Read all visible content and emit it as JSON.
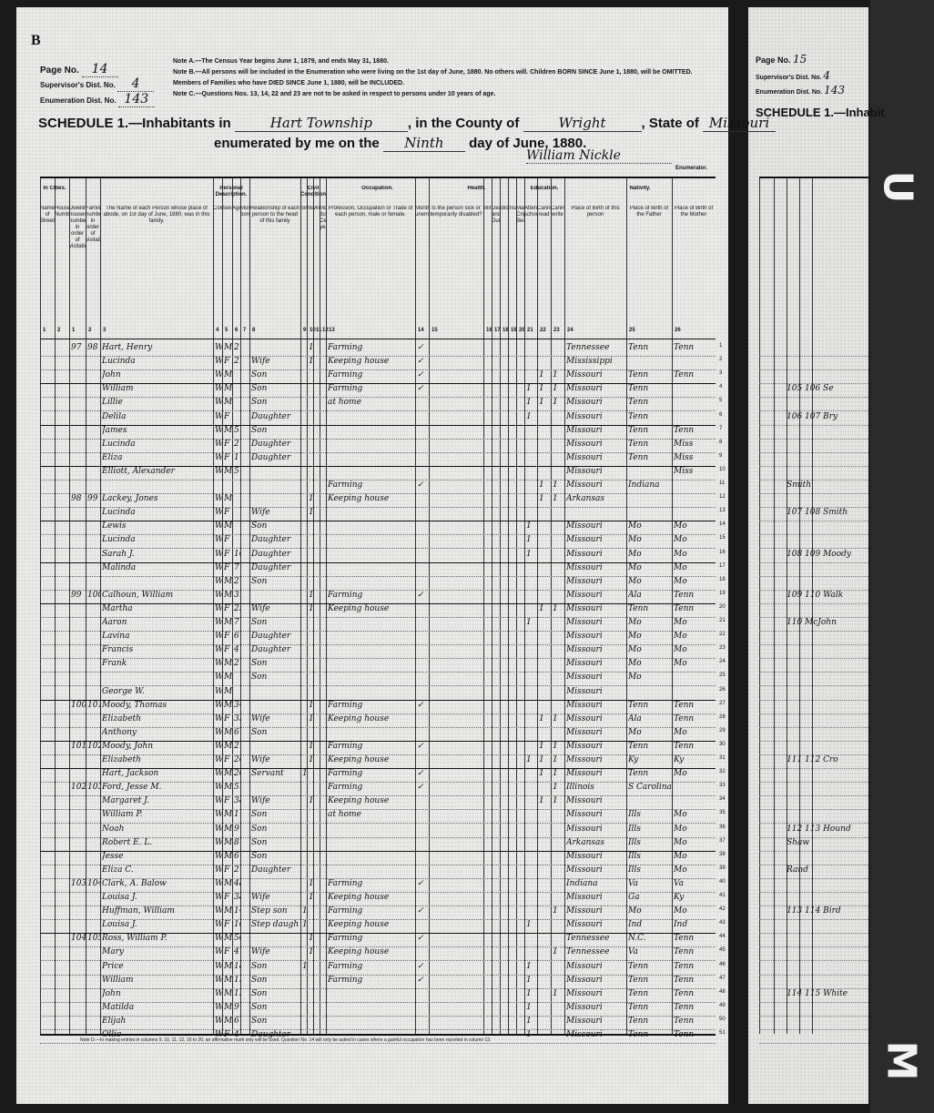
{
  "page_letter": "B",
  "header": {
    "page_no_label": "Page No.",
    "page_no": "14",
    "supervisor_label": "Supervisor's Dist. No.",
    "supervisor_no": "4",
    "enumeration_label": "Enumeration Dist. No.",
    "enumeration_no": "143",
    "notes": [
      "Note A.—The Census Year begins June 1, 1879, and ends May 31, 1880.",
      "Note B.—All persons will be included in the Enumeration who were living on the 1st day of June, 1880. No others will. Children BORN SINCE June 1, 1880, will be OMITTED. Members of Families who have DIED SINCE June 1, 1880, will be INCLUDED.",
      "Note C.—Questions Nos. 13, 14, 22 and 23 are not to be asked in respect to persons under 10 years of age."
    ],
    "schedule_label": "SCHEDULE 1.—Inhabitants in",
    "township": "Hart Township",
    "county_label": ", in the County of",
    "county": "Wright",
    "state_label": ", State of",
    "state": "Missouri",
    "enumerated_label": "enumerated by me on the",
    "day": "Ninth",
    "day_suffix": "day of June, 1880.",
    "enumerator": "William Nickle",
    "enumerator_label": "Enumerator."
  },
  "columns": [
    {
      "label": "Name of Street.",
      "num": "1"
    },
    {
      "label": "House Number.",
      "num": "2"
    },
    {
      "label": "Dwelling houses numbered in order of visitation.",
      "num": "1"
    },
    {
      "label": "Families numbered in order of visitation.",
      "num": "2"
    },
    {
      "label": "The Name of each Person whose place of abode, on 1st day of June, 1880, was in this family.",
      "num": "3"
    },
    {
      "label": "Color",
      "num": "4"
    },
    {
      "label": "Sex",
      "num": "5"
    },
    {
      "label": "Age",
      "num": "6"
    },
    {
      "label": "Month born",
      "num": "7"
    },
    {
      "label": "Relationship of each person to the head of this family",
      "num": "8"
    },
    {
      "label": "Single",
      "num": "9"
    },
    {
      "label": "Married",
      "num": "10"
    },
    {
      "label": "Widowed",
      "num": "11"
    },
    {
      "label": "Married during Census year",
      "num": "12"
    },
    {
      "label": "Profession, Occupation or Trade of each person, male or female.",
      "num": "13"
    },
    {
      "label": "Months unemployed",
      "num": "14"
    },
    {
      "label": "Is the person sick or temporarily disabled?",
      "num": "15"
    },
    {
      "label": "Blind",
      "num": "16"
    },
    {
      "label": "Deaf and Dumb",
      "num": "17"
    },
    {
      "label": "Idiotic",
      "num": "18"
    },
    {
      "label": "Insane",
      "num": "19"
    },
    {
      "label": "Maimed, Crippled, Bedridden",
      "num": "20"
    },
    {
      "label": "Attended school",
      "num": "21"
    },
    {
      "label": "Cannot read",
      "num": "22"
    },
    {
      "label": "Cannot write",
      "num": "23"
    },
    {
      "label": "Place of Birth of this person",
      "num": "24"
    },
    {
      "label": "Place of Birth of the Father",
      "num": "25"
    },
    {
      "label": "Place of Birth of the Mother",
      "num": "26"
    }
  ],
  "section_headers": {
    "in_cities": "In Cities.",
    "personal": "Personal Description.",
    "civil": "Civil Condition.",
    "occupation": "Occupation.",
    "health": "Health.",
    "education": "Education.",
    "nativity": "Nativity."
  },
  "rows": [
    {
      "dw": "97",
      "fam": "98",
      "name": "Hart, Henry",
      "color": "W",
      "sex": "M",
      "age": "27",
      "rel": "",
      "mar": "1",
      "occ": "Farming",
      "unemp": "✓",
      "sch": "",
      "read": "",
      "write": "",
      "bp": "Tennessee",
      "fbp": "Tenn",
      "mbp": "Tenn"
    },
    {
      "name": "Lucinda",
      "color": "W",
      "sex": "F",
      "age": "21",
      "rel": "Wife",
      "mar": "1",
      "occ": "Keeping house",
      "unemp": "✓",
      "bp": "Mississippi",
      "fbp": "",
      "mbp": ""
    },
    {
      "name": "John",
      "color": "W",
      "sex": "M",
      "age": "",
      "rel": "Son",
      "occ": "Farming",
      "unemp": "✓",
      "read": "1",
      "write": "1",
      "bp": "Missouri",
      "fbp": "Tenn",
      "mbp": "Tenn",
      "end": true
    },
    {
      "name": "William",
      "color": "W",
      "sex": "M",
      "age": "",
      "rel": "Son",
      "occ": "Farming",
      "unemp": "✓",
      "sch": "1",
      "read": "1",
      "write": "1",
      "bp": "Missouri",
      "fbp": "Tenn",
      "mbp": ""
    },
    {
      "name": "Lillie",
      "color": "W",
      "sex": "M",
      "age": "",
      "rel": "Son",
      "occ": "at home",
      "sch": "1",
      "read": "1",
      "write": "1",
      "bp": "Missouri",
      "fbp": "Tenn",
      "mbp": ""
    },
    {
      "name": "Delila",
      "color": "W",
      "sex": "F",
      "age": "",
      "rel": "Daughter",
      "sch": "1",
      "bp": "Missouri",
      "fbp": "Tenn",
      "mbp": "",
      "end": true
    },
    {
      "name": "James",
      "color": "W",
      "sex": "M",
      "age": "5",
      "rel": "Son",
      "bp": "Missouri",
      "fbp": "Tenn",
      "mbp": "Tenn"
    },
    {
      "name": "Lucinda",
      "color": "W",
      "sex": "F",
      "age": "2",
      "rel": "Daughter",
      "bp": "Missouri",
      "fbp": "Tenn",
      "mbp": "Miss"
    },
    {
      "name": "Eliza",
      "color": "W",
      "sex": "F",
      "age": "1",
      "rel": "Daughter",
      "bp": "Missouri",
      "fbp": "Tenn",
      "mbp": "Miss",
      "end": true
    },
    {
      "name": "Elliott, Alexander",
      "color": "W",
      "sex": "M",
      "age": "5",
      "rel": "",
      "bp": "Missouri",
      "fbp": "",
      "mbp": "Miss"
    },
    {
      "name": "",
      "color": "",
      "sex": "",
      "age": "",
      "rel": "",
      "occ": "Farming",
      "unemp": "✓",
      "read": "1",
      "write": "1",
      "bp": "Missouri",
      "fbp": "Indiana",
      "mbp": ""
    },
    {
      "dw": "98",
      "fam": "99",
      "name": "Lackey, Jones",
      "color": "W",
      "sex": "M",
      "age": "",
      "rel": "",
      "mar": "1",
      "occ": "Keeping house",
      "read": "1",
      "write": "1",
      "bp": "Arkansas",
      "fbp": "",
      "mbp": ""
    },
    {
      "name": "Lucinda",
      "color": "W",
      "sex": "F",
      "age": "",
      "rel": "Wife",
      "mar": "1",
      "bp": "",
      "fbp": "",
      "mbp": "",
      "end": true
    },
    {
      "name": "Lewis",
      "color": "W",
      "sex": "M",
      "age": "",
      "rel": "Son",
      "sch": "1",
      "bp": "Missouri",
      "fbp": "Mo",
      "mbp": "Mo"
    },
    {
      "name": "Lucinda",
      "color": "W",
      "sex": "F",
      "age": "",
      "rel": "Daughter",
      "sch": "1",
      "bp": "Missouri",
      "fbp": "Mo",
      "mbp": "Mo"
    },
    {
      "name": "Sarah J.",
      "color": "W",
      "sex": "F",
      "age": "10",
      "rel": "Daughter",
      "sch": "1",
      "bp": "Missouri",
      "fbp": "Mo",
      "mbp": "Mo",
      "end": true
    },
    {
      "name": "Malinda",
      "color": "W",
      "sex": "F",
      "age": "7",
      "rel": "Daughter",
      "bp": "Missouri",
      "fbp": "Mo",
      "mbp": "Mo"
    },
    {
      "name": "",
      "color": "W",
      "sex": "M",
      "age": "2",
      "rel": "Son",
      "bp": "Missouri",
      "fbp": "Mo",
      "mbp": "Mo"
    },
    {
      "dw": "99",
      "fam": "100",
      "name": "Calhoun, William",
      "color": "W",
      "sex": "M",
      "age": "31",
      "rel": "",
      "mar": "1",
      "occ": "Farming",
      "unemp": "✓",
      "bp": "Missouri",
      "fbp": "Ala",
      "mbp": "Tenn",
      "end": true
    },
    {
      "name": "Martha",
      "color": "W",
      "sex": "F",
      "age": "25",
      "rel": "Wife",
      "mar": "1",
      "occ": "Keeping house",
      "read": "1",
      "write": "1",
      "bp": "Missouri",
      "fbp": "Tenn",
      "mbp": "Tenn"
    },
    {
      "name": "Aaron",
      "color": "W",
      "sex": "M",
      "age": "7",
      "rel": "Son",
      "sch": "1",
      "bp": "Missouri",
      "fbp": "Mo",
      "mbp": "Mo"
    },
    {
      "name": "Lavina",
      "color": "W",
      "sex": "F",
      "age": "6",
      "rel": "Daughter",
      "bp": "Missouri",
      "fbp": "Mo",
      "mbp": "Mo"
    },
    {
      "name": "Francis",
      "color": "W",
      "sex": "F",
      "age": "4",
      "rel": "Daughter",
      "bp": "Missouri",
      "fbp": "Mo",
      "mbp": "Mo"
    },
    {
      "name": "Frank",
      "color": "W",
      "sex": "M",
      "age": "2",
      "rel": "Son",
      "bp": "Missouri",
      "fbp": "Mo",
      "mbp": "Mo"
    },
    {
      "name": "",
      "color": "W",
      "sex": "M",
      "age": "",
      "rel": "Son",
      "bp": "Missouri",
      "fbp": "Mo",
      "mbp": ""
    },
    {
      "name": "George W.",
      "color": "W",
      "sex": "M",
      "age": "",
      "rel": "",
      "bp": "Missouri",
      "fbp": "",
      "mbp": "",
      "end": true
    },
    {
      "dw": "100",
      "fam": "101",
      "name": "Moody, Thomas",
      "color": "W",
      "sex": "M",
      "age": "34",
      "rel": "",
      "mar": "1",
      "occ": "Farming",
      "unemp": "✓",
      "bp": "Missouri",
      "fbp": "Tenn",
      "mbp": "Tenn"
    },
    {
      "name": "Elizabeth",
      "color": "W",
      "sex": "F",
      "age": "33",
      "rel": "Wife",
      "mar": "1",
      "occ": "Keeping house",
      "read": "1",
      "write": "1",
      "bp": "Missouri",
      "fbp": "Ala",
      "mbp": "Tenn"
    },
    {
      "name": "Anthony",
      "color": "W",
      "sex": "M",
      "age": "6",
      "rel": "Son",
      "bp": "Missouri",
      "fbp": "Mo",
      "mbp": "Mo",
      "end": true
    },
    {
      "dw": "101",
      "fam": "102",
      "name": "Moody, John",
      "color": "W",
      "sex": "M",
      "age": "21",
      "rel": "",
      "mar": "1",
      "occ": "Farming",
      "unemp": "✓",
      "read": "1",
      "write": "1",
      "bp": "Missouri",
      "fbp": "Tenn",
      "mbp": "Tenn"
    },
    {
      "name": "Elizabeth",
      "color": "W",
      "sex": "F",
      "age": "26",
      "rel": "Wife",
      "mar": "1",
      "occ": "Keeping house",
      "sch": "1",
      "read": "1",
      "write": "1",
      "bp": "Missouri",
      "fbp": "Ky",
      "mbp": "Ky",
      "end": true
    },
    {
      "name": "Hart, Jackson",
      "color": "W",
      "sex": "M",
      "age": "20",
      "rel": "Servant",
      "sing": "1",
      "occ": "Farming",
      "unemp": "✓",
      "read": "1",
      "write": "1",
      "bp": "Missouri",
      "fbp": "Tenn",
      "mbp": "Mo"
    },
    {
      "dw": "102",
      "fam": "103",
      "name": "Ford, Jesse M.",
      "color": "W",
      "sex": "M",
      "age": "51",
      "rel": "",
      "occ": "Farming",
      "unemp": "✓",
      "write": "1",
      "bp": "Illinois",
      "fbp": "S Carolina",
      "mbp": ""
    },
    {
      "name": "Margaret J.",
      "color": "W",
      "sex": "F",
      "age": "38",
      "rel": "Wife",
      "mar": "1",
      "occ": "Keeping house",
      "read": "1",
      "write": "1",
      "bp": "Missouri",
      "fbp": "",
      "mbp": ""
    },
    {
      "name": "William P.",
      "color": "W",
      "sex": "M",
      "age": "11",
      "rel": "Son",
      "occ": "at home",
      "bp": "Missouri",
      "fbp": "Ills",
      "mbp": "Mo"
    },
    {
      "name": "Noah",
      "color": "W",
      "sex": "M",
      "age": "9",
      "rel": "Son",
      "bp": "Missouri",
      "fbp": "Ills",
      "mbp": "Mo"
    },
    {
      "name": "Robert E. L.",
      "color": "W",
      "sex": "M",
      "age": "8",
      "rel": "Son",
      "bp": "Arkansas",
      "fbp": "Ills",
      "mbp": "Mo",
      "end": true
    },
    {
      "name": "Jesse",
      "color": "W",
      "sex": "M",
      "age": "6",
      "rel": "Son",
      "bp": "Missouri",
      "fbp": "Ills",
      "mbp": "Mo"
    },
    {
      "name": "Eliza C.",
      "color": "W",
      "sex": "F",
      "age": "2",
      "rel": "Daughter",
      "bp": "Missouri",
      "fbp": "Ills",
      "mbp": "Mo"
    },
    {
      "dw": "103",
      "fam": "104",
      "name": "Clark, A. Balow",
      "color": "W",
      "sex": "M",
      "age": "48",
      "rel": "",
      "mar": "1",
      "occ": "Farming",
      "unemp": "✓",
      "bp": "Indiana",
      "fbp": "Va",
      "mbp": "Va"
    },
    {
      "name": "Louisa J.",
      "color": "W",
      "sex": "F",
      "age": "38",
      "rel": "Wife",
      "mar": "1",
      "occ": "Keeping house",
      "bp": "Missouri",
      "fbp": "Ga",
      "mbp": "Ky"
    },
    {
      "name": "Huffman, William",
      "color": "W",
      "sex": "M",
      "age": "14",
      "rel": "Step son",
      "sing": "1",
      "occ": "Farming",
      "unemp": "✓",
      "write": "1",
      "bp": "Missouri",
      "fbp": "Mo",
      "mbp": "Mo"
    },
    {
      "name": "Louisa J.",
      "color": "W",
      "sex": "F",
      "age": "16",
      "rel": "Step daugh",
      "sing": "1",
      "occ": "Keeping house",
      "sch": "1",
      "bp": "Missouri",
      "fbp": "Ind",
      "mbp": "Ind",
      "end": true
    },
    {
      "dw": "104",
      "fam": "105",
      "name": "Ross, William P.",
      "color": "W",
      "sex": "M",
      "age": "50",
      "rel": "",
      "mar": "1",
      "occ": "Farming",
      "unemp": "✓",
      "bp": "Tennessee",
      "fbp": "N.C.",
      "mbp": "Tenn"
    },
    {
      "name": "Mary",
      "color": "W",
      "sex": "F",
      "age": "47",
      "rel": "Wife",
      "mar": "1",
      "occ": "Keeping house",
      "write": "1",
      "bp": "Tennessee",
      "fbp": "Va",
      "mbp": "Tenn"
    },
    {
      "name": "Price",
      "color": "W",
      "sex": "M",
      "age": "18",
      "rel": "Son",
      "sing": "1",
      "occ": "Farming",
      "unemp": "✓",
      "sch": "1",
      "bp": "Missouri",
      "fbp": "Tenn",
      "mbp": "Tenn"
    },
    {
      "name": "William",
      "color": "W",
      "sex": "M",
      "age": "15",
      "rel": "Son",
      "occ": "Farming",
      "unemp": "✓",
      "sch": "1",
      "bp": "Missouri",
      "fbp": "Tenn",
      "mbp": "Tenn"
    },
    {
      "name": "John",
      "color": "W",
      "sex": "M",
      "age": "13",
      "rel": "Son",
      "sch": "1",
      "write": "1",
      "bp": "Missouri",
      "fbp": "Tenn",
      "mbp": "Tenn"
    },
    {
      "name": "Matilda",
      "color": "W",
      "sex": "M",
      "age": "9",
      "rel": "Son",
      "sch": "1",
      "bp": "Missouri",
      "fbp": "Tenn",
      "mbp": "Tenn"
    },
    {
      "name": "Elijah",
      "color": "W",
      "sex": "M",
      "age": "6",
      "rel": "Son",
      "sch": "1",
      "bp": "Missouri",
      "fbp": "Tenn",
      "mbp": "Tenn"
    },
    {
      "name": "Ollie",
      "color": "W",
      "sex": "F",
      "age": "4",
      "rel": "Daughter",
      "sch": "1",
      "bp": "Missouri",
      "fbp": "Tenn",
      "mbp": "Tenn"
    }
  ],
  "footnote": "Note D.—In making entries in columns 9, 10, 11, 12, 16 to 20, an affirmative mark only will be used. Question No. 14 will only be asked in cases where a gainful occupation has been reported in column 13.",
  "next_page": {
    "page_no_label": "Page No.",
    "page_no": "15",
    "supervisor_label": "Supervisor's Dist. No.",
    "supervisor_no": "4",
    "enumeration_label": "Enumeration Dist. No.",
    "enumeration_no": "143",
    "schedule_label": "SCHEDULE 1.—Inhabit",
    "entries": [
      {
        "row": 4,
        "text": "105 106 Se"
      },
      {
        "row": 6,
        "text": "106 107 Bry"
      },
      {
        "row": 11,
        "text": "Smith"
      },
      {
        "row": 13,
        "text": "107 108 Smith"
      },
      {
        "row": 16,
        "text": "108 109 Moody"
      },
      {
        "row": 19,
        "text": "109 110 Walk"
      },
      {
        "row": 21,
        "text": "110 McJohn"
      },
      {
        "row": 31,
        "text": "111 112 Cro"
      },
      {
        "row": 36,
        "text": "112 113 Hound"
      },
      {
        "row": 37,
        "text": "Shaw"
      },
      {
        "row": 39,
        "text": "Rand"
      },
      {
        "row": 42,
        "text": "113 114 Bird"
      },
      {
        "row": 48,
        "text": "114 115 White"
      }
    ]
  }
}
